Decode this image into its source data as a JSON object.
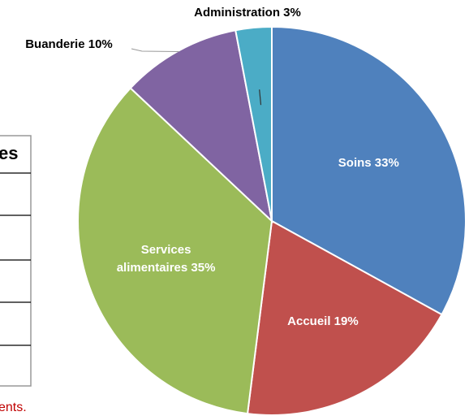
{
  "chart_data": {
    "type": "pie",
    "categories": [
      "Soins",
      "Accueil",
      "Services alimentaires",
      "Buanderie",
      "Administration"
    ],
    "values": [
      33,
      19,
      35,
      10,
      3
    ],
    "value_labels": [
      "Soins 33%",
      "Accueil 19%",
      "Services alimentaires 35%",
      "Buanderie 10%",
      "Administration 3%"
    ],
    "colors": [
      "#4f81bd",
      "#c0504d",
      "#9bbb59",
      "#8064a2",
      "#4bacc6"
    ]
  },
  "table": {
    "header": "es"
  },
  "note": "ents."
}
